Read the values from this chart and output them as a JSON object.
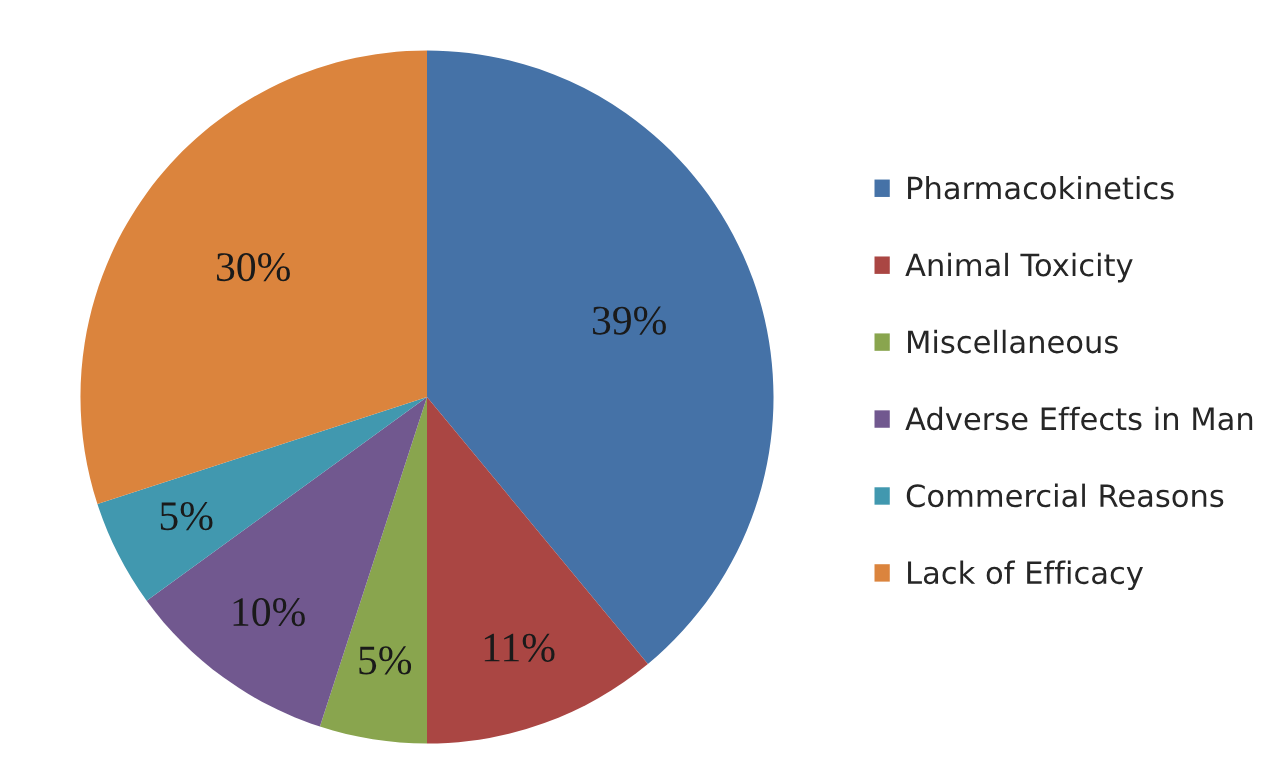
{
  "chart_data": {
    "type": "pie",
    "categories": [
      "Pharmacokinetics",
      "Animal Toxicity",
      "Miscellaneous",
      "Adverse Effects in Man",
      "Commercial Reasons",
      "Lack of Efficacy"
    ],
    "values": [
      39,
      11,
      5,
      10,
      5,
      30
    ],
    "colors": [
      "#4572a7",
      "#aa4643",
      "#89a54e",
      "#71588f",
      "#4198af",
      "#db843d"
    ],
    "value_labels": [
      "39%",
      "11%",
      "5%",
      "10%",
      "5%",
      "30%"
    ],
    "legend": "right"
  }
}
